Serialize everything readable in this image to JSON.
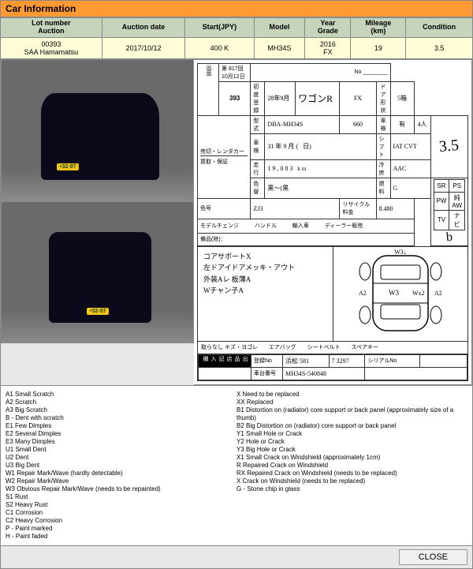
{
  "title": "Car Information",
  "table": {
    "headers": {
      "lot": "Lot number\nAuction",
      "date": "Auction date",
      "start": "Start(JPY)",
      "model": "Model",
      "year": "Year\nGrade",
      "mileage": "Mileage\n(km)",
      "condition": "Condition"
    },
    "row": {
      "lot": "00393\nSAA Hamamatsu",
      "date": "2017/10/12",
      "start": "400 K",
      "model": "MH34S",
      "year": "2016\nFX",
      "mileage": "19",
      "condition": "3.5"
    }
  },
  "sheet": {
    "top_small": "第 817回",
    "date_small": "10月12日",
    "lot_number": "393",
    "year_jp": "28",
    "month_jp": "9",
    "car_name": "ワゴンR",
    "grade": "FX",
    "doors": "5",
    "door_suffix": "箱",
    "type_code": "DBA-MH34S",
    "cc": "660",
    "check": "有",
    "capacity": "4",
    "score": "3.5",
    "shaken_y": "31",
    "shaken_m": "9",
    "shift": "IAT CVT",
    "odo": "19,083",
    "odo_unit": "km",
    "ac": "AAC",
    "equip": "キーレス",
    "fuel": "G",
    "color": "黒～(黒",
    "num": "8.480",
    "body_code": "ZJ3",
    "interior_score": "b",
    "equip_checks": [
      "SR",
      "PS",
      "PW",
      "純AW",
      "TV",
      "ナビ"
    ],
    "notes": [
      "コアサポートX",
      "左ドアイドアメッキ・アウト",
      "外装Aレ 板薄A",
      "Wチャン子A"
    ],
    "plate_region": "浜松",
    "plate_class": "581",
    "plate_num": "7 3297",
    "chassis": "MH34S-",
    "chassis_num": "540848",
    "serial_label": "シリアルNo",
    "dmg": {
      "top": "W3",
      "left": "A2",
      "mid": "W3",
      "right": "A2"
    }
  },
  "legend": {
    "left": [
      "A1 Small Scratch",
      "A2 Scratch",
      "A3 Big Scratch",
      "B - Dent with scratch",
      "E1 Few Dimples",
      "E2 Several Dimples",
      "E3 Many Dimples",
      "U1 Small Dent",
      "U2 Dent",
      "U3 Big Dent",
      "W1 Repair Mark/Wave (hardly detectable)",
      "W2 Repair Mark/Wave",
      "W3 Obvious Repair Mark/Wave (needs to be repainted)",
      "S1 Rust",
      "S2 Heavy Rust",
      "C1 Corrosion",
      "C2 Heavy Corrosion",
      "P - Paint marked",
      "H - Paint faded"
    ],
    "right": [
      "X Need to be replaced",
      "XX Replaced",
      "B1 Distortion on (radiator) core support or back panel (approximately size of a thumb)",
      "B2 Big Distortion on (radiator) core support or back panel",
      "Y1 Small Hole or Crack",
      "Y2 Hole or Crack",
      "Y3 Big Hole or Crack",
      "X1 Small Crack on Windshield (approximately 1cm)",
      "R Repaired Crack on Windshield",
      "RX Repaired Crack on Windshield (needs to be replaced)",
      "X Crack on Windshield (needs to be replaced)",
      "G - Stone chip in glass"
    ]
  },
  "close_label": "CLOSE",
  "colors": {
    "header_bg": "#ff9933",
    "th_bg": "#c5d4bb",
    "td_bg": "#fffdd8"
  }
}
